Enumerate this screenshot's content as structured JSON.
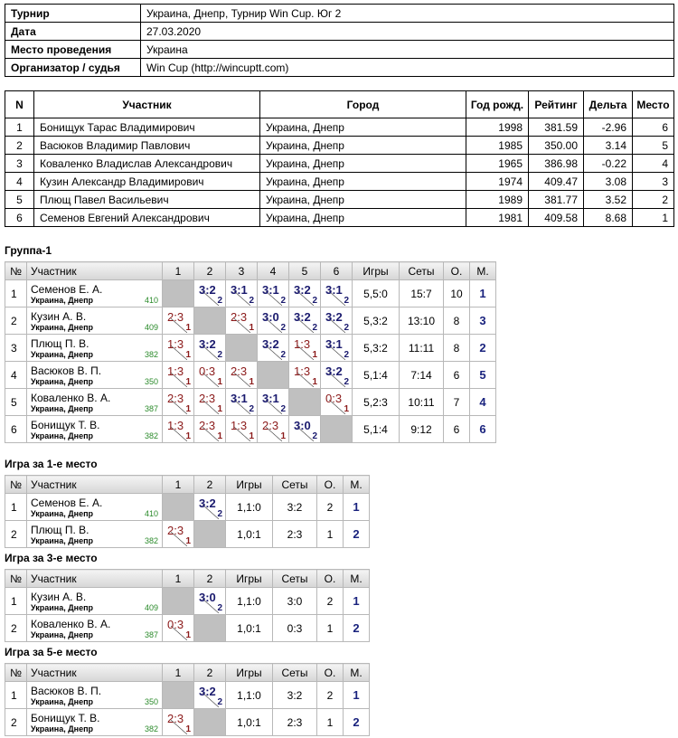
{
  "info": {
    "rows": [
      [
        "Турнир",
        "Украина, Днепр, Турнир Win Cup. Юг 2"
      ],
      [
        "Дата",
        "27.03.2020"
      ],
      [
        "Место проведения",
        "Украина"
      ],
      [
        "Организатор / судья",
        "Win Cup (http://wincuptt.com)"
      ]
    ]
  },
  "players": {
    "header": [
      "N",
      "Участник",
      "Город",
      "Год рожд.",
      "Рейтинг",
      "Дельта",
      "Место"
    ],
    "rows": [
      [
        "1",
        "Бонищук Тарас Владимирович",
        "Украина, Днепр",
        "1998",
        "381.59",
        "-2.96",
        "6"
      ],
      [
        "2",
        "Васюков Владимир Павлович",
        "Украина, Днепр",
        "1985",
        "350.00",
        "3.14",
        "5"
      ],
      [
        "3",
        "Коваленко Владислав Александрович",
        "Украина, Днепр",
        "1965",
        "386.98",
        "-0.22",
        "4"
      ],
      [
        "4",
        "Кузин Александр Владимирович",
        "Украина, Днепр",
        "1974",
        "409.47",
        "3.08",
        "3"
      ],
      [
        "5",
        "Плющ Павел Васильевич",
        "Украина, Днепр",
        "1989",
        "381.77",
        "3.52",
        "2"
      ],
      [
        "6",
        "Семенов Евгений Александрович",
        "Украина, Днепр",
        "1981",
        "409.58",
        "8.68",
        "1"
      ]
    ]
  },
  "groups": [
    {
      "title": "Группа-1",
      "header": [
        "№",
        "Участник",
        "1",
        "2",
        "3",
        "4",
        "5",
        "6",
        "Игры",
        "Сеты",
        "О.",
        "М."
      ],
      "rows": [
        {
          "num": "1",
          "name": "Семенов Е. А.",
          "city": "Украина, Днепр",
          "rating": "410",
          "cells": [
            null,
            {
              "score": "3:2",
              "pts": "2"
            },
            {
              "score": "3:1",
              "pts": "2"
            },
            {
              "score": "3:1",
              "pts": "2"
            },
            {
              "score": "3:2",
              "pts": "2"
            },
            {
              "score": "3:1",
              "pts": "2"
            }
          ],
          "games": "5,5:0",
          "sets": "15:7",
          "points": "10",
          "place": "1"
        },
        {
          "num": "2",
          "name": "Кузин А. В.",
          "city": "Украина, Днепр",
          "rating": "409",
          "cells": [
            {
              "score": "2:3",
              "pts": "1"
            },
            null,
            {
              "score": "2:3",
              "pts": "1"
            },
            {
              "score": "3:0",
              "pts": "2"
            },
            {
              "score": "3:2",
              "pts": "2"
            },
            {
              "score": "3:2",
              "pts": "2"
            }
          ],
          "games": "5,3:2",
          "sets": "13:10",
          "points": "8",
          "place": "3"
        },
        {
          "num": "3",
          "name": "Плющ П. В.",
          "city": "Украина, Днепр",
          "rating": "382",
          "cells": [
            {
              "score": "1:3",
              "pts": "1"
            },
            {
              "score": "3:2",
              "pts": "2"
            },
            null,
            {
              "score": "3:2",
              "pts": "2"
            },
            {
              "score": "1:3",
              "pts": "1"
            },
            {
              "score": "3:1",
              "pts": "2"
            }
          ],
          "games": "5,3:2",
          "sets": "11:11",
          "points": "8",
          "place": "2"
        },
        {
          "num": "4",
          "name": "Васюков В. П.",
          "city": "Украина, Днепр",
          "rating": "350",
          "cells": [
            {
              "score": "1:3",
              "pts": "1"
            },
            {
              "score": "0:3",
              "pts": "1"
            },
            {
              "score": "2:3",
              "pts": "1"
            },
            null,
            {
              "score": "1:3",
              "pts": "1"
            },
            {
              "score": "3:2",
              "pts": "2"
            }
          ],
          "games": "5,1:4",
          "sets": "7:14",
          "points": "6",
          "place": "5"
        },
        {
          "num": "5",
          "name": "Коваленко В. А.",
          "city": "Украина, Днепр",
          "rating": "387",
          "cells": [
            {
              "score": "2:3",
              "pts": "1"
            },
            {
              "score": "2:3",
              "pts": "1"
            },
            {
              "score": "3:1",
              "pts": "2"
            },
            {
              "score": "3:1",
              "pts": "2"
            },
            null,
            {
              "score": "0:3",
              "pts": "1"
            }
          ],
          "games": "5,2:3",
          "sets": "10:11",
          "points": "7",
          "place": "4"
        },
        {
          "num": "6",
          "name": "Бонищук Т. В.",
          "city": "Украина, Днепр",
          "rating": "382",
          "cells": [
            {
              "score": "1:3",
              "pts": "1"
            },
            {
              "score": "2:3",
              "pts": "1"
            },
            {
              "score": "1:3",
              "pts": "1"
            },
            {
              "score": "2:3",
              "pts": "1"
            },
            {
              "score": "3:0",
              "pts": "2"
            },
            null
          ],
          "games": "5,1:4",
          "sets": "9:12",
          "points": "6",
          "place": "6"
        }
      ]
    },
    {
      "title": "Игра за 1-е место",
      "header": [
        "№",
        "Участник",
        "1",
        "2",
        "Игры",
        "Сеты",
        "О.",
        "М."
      ],
      "rows": [
        {
          "num": "1",
          "name": "Семенов Е. А.",
          "city": "Украина, Днепр",
          "rating": "410",
          "cells": [
            null,
            {
              "score": "3:2",
              "pts": "2"
            }
          ],
          "games": "1,1:0",
          "sets": "3:2",
          "points": "2",
          "place": "1"
        },
        {
          "num": "2",
          "name": "Плющ П. В.",
          "city": "Украина, Днепр",
          "rating": "382",
          "cells": [
            {
              "score": "2:3",
              "pts": "1"
            },
            null
          ],
          "games": "1,0:1",
          "sets": "2:3",
          "points": "1",
          "place": "2"
        }
      ]
    },
    {
      "title": "Игра за 3-е место",
      "header": [
        "№",
        "Участник",
        "1",
        "2",
        "Игры",
        "Сеты",
        "О.",
        "М."
      ],
      "rows": [
        {
          "num": "1",
          "name": "Кузин А. В.",
          "city": "Украина, Днепр",
          "rating": "409",
          "cells": [
            null,
            {
              "score": "3:0",
              "pts": "2"
            }
          ],
          "games": "1,1:0",
          "sets": "3:0",
          "points": "2",
          "place": "1"
        },
        {
          "num": "2",
          "name": "Коваленко В. А.",
          "city": "Украина, Днепр",
          "rating": "387",
          "cells": [
            {
              "score": "0:3",
              "pts": "1"
            },
            null
          ],
          "games": "1,0:1",
          "sets": "0:3",
          "points": "1",
          "place": "2"
        }
      ]
    },
    {
      "title": "Игра за 5-е место",
      "header": [
        "№",
        "Участник",
        "1",
        "2",
        "Игры",
        "Сеты",
        "О.",
        "М."
      ],
      "rows": [
        {
          "num": "1",
          "name": "Васюков В. П.",
          "city": "Украина, Днепр",
          "rating": "350",
          "cells": [
            null,
            {
              "score": "3:2",
              "pts": "2"
            }
          ],
          "games": "1,1:0",
          "sets": "3:2",
          "points": "2",
          "place": "1"
        },
        {
          "num": "2",
          "name": "Бонищук Т. В.",
          "city": "Украина, Днепр",
          "rating": "382",
          "cells": [
            {
              "score": "2:3",
              "pts": "1"
            },
            null
          ],
          "games": "1,0:1",
          "sets": "2:3",
          "points": "1",
          "place": "2"
        }
      ]
    }
  ]
}
